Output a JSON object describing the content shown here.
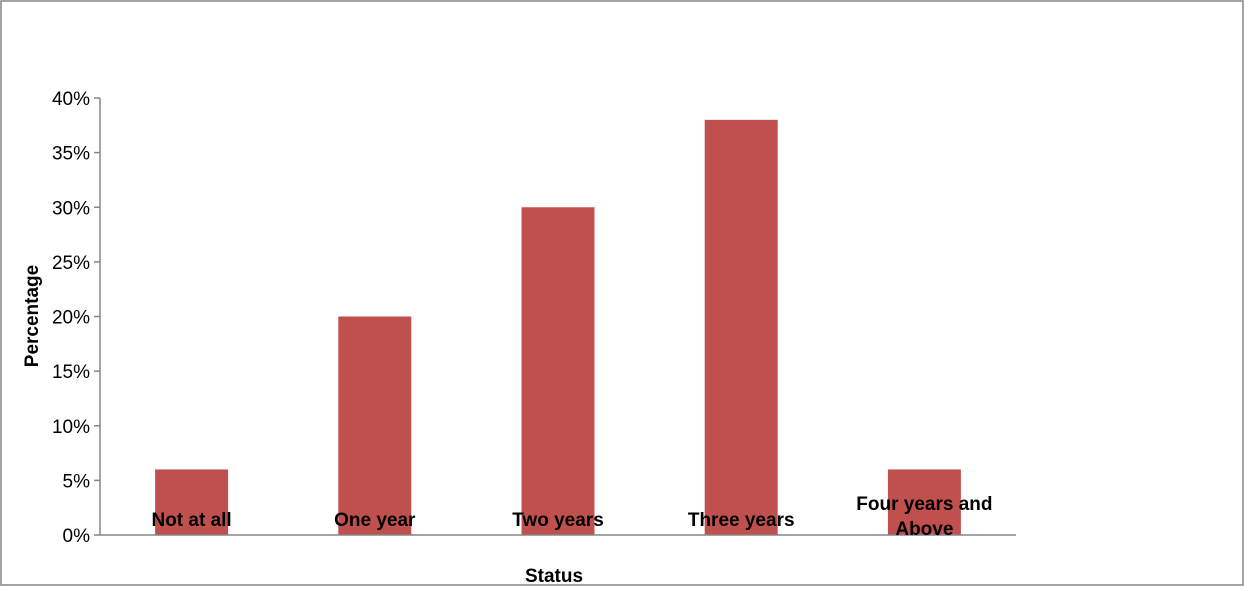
{
  "chart_data": {
    "type": "bar",
    "categories": [
      [
        "Not at all"
      ],
      [
        "One year"
      ],
      [
        "Two years"
      ],
      [
        "Three years"
      ],
      [
        "Four years and",
        "Above"
      ]
    ],
    "values": [
      6,
      20,
      30,
      38,
      6
    ],
    "ylim": [
      0,
      40
    ],
    "yticks": [
      0,
      5,
      10,
      15,
      20,
      25,
      30,
      35,
      40
    ],
    "tick_suffix": "%",
    "xlabel": "Status",
    "ylabel": "Percentage",
    "title": "",
    "grid": false,
    "legend": "none",
    "bar_color": "#C0504D",
    "axis_color": "#868686",
    "border_color": "#868686"
  }
}
